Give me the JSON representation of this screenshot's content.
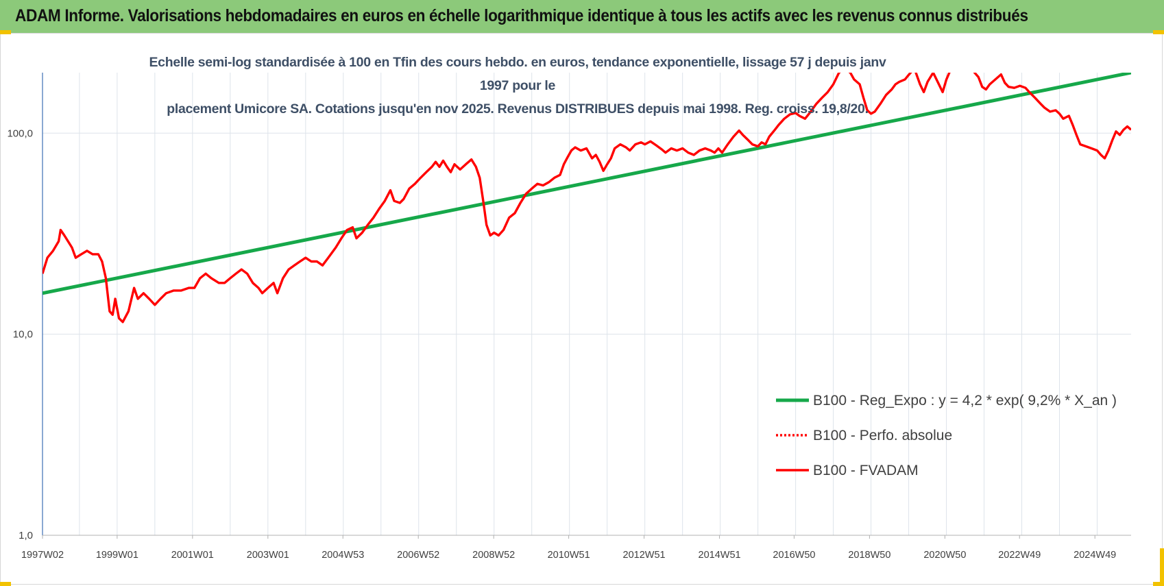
{
  "header": {
    "title": "ADAM Informe. Valorisations hebdomadaires en euros en échelle logarithmique identique à tous les actifs avec les revenus connus distribués"
  },
  "colors": {
    "banner": "#8cc97a",
    "accent_corner": "#f2c200",
    "trend": "#16a84a",
    "fvadam": "#ff0000",
    "perfo": "#ff0000",
    "subtitle": "#3e4f66"
  },
  "chart_data": {
    "type": "line",
    "title_lines": [
      "Echelle semi-log standardisée à 100 en Tfin des cours hebdo. en euros, tendance exponentielle, lissage 57 j depuis janv 1997 pour le",
      "placement Umicore SA. Cotations jusqu'en nov 2025. Revenus DISTRIBUES depuis mai 1998. Reg. croiss. 19,8/20."
    ],
    "y_scale": "log",
    "ylim": [
      1,
      200
    ],
    "y_ticks": [
      {
        "value": 1,
        "label": "1,0"
      },
      {
        "value": 10,
        "label": "10,0"
      },
      {
        "value": 100,
        "label": "100,0"
      }
    ],
    "x_range": [
      1997.02,
      2025.9
    ],
    "x_ticks": [
      {
        "x": 1997.02,
        "label": "1997W02"
      },
      {
        "x": 1999.0,
        "label": "1999W01"
      },
      {
        "x": 2001.0,
        "label": "2001W01"
      },
      {
        "x": 2003.0,
        "label": "2003W01"
      },
      {
        "x": 2004.99,
        "label": "2004W53"
      },
      {
        "x": 2006.99,
        "label": "2006W52"
      },
      {
        "x": 2008.99,
        "label": "2008W52"
      },
      {
        "x": 2010.98,
        "label": "2010W51"
      },
      {
        "x": 2012.98,
        "label": "2012W51"
      },
      {
        "x": 2014.98,
        "label": "2014W51"
      },
      {
        "x": 2016.96,
        "label": "2016W50"
      },
      {
        "x": 2018.96,
        "label": "2018W50"
      },
      {
        "x": 2020.96,
        "label": "2020W50"
      },
      {
        "x": 2022.94,
        "label": "2022W49"
      },
      {
        "x": 2024.94,
        "label": "2024W49"
      }
    ],
    "grid": "vertical",
    "legend_position": "bottom-right",
    "series": [
      {
        "name": "B100 - Reg_Expo : y = 4,2 * exp( 9,2% *  X_an )",
        "color": "#16a84a",
        "style": "solid",
        "points": [
          [
            1997.02,
            16
          ],
          [
            2025.9,
            200
          ]
        ]
      },
      {
        "name": "B100 - Perfo. absolue",
        "color": "#ff0000",
        "style": "dotted",
        "points": []
      },
      {
        "name": "B100 - FVADAM",
        "color": "#ff0000",
        "style": "solid",
        "points": [
          [
            1997.02,
            20
          ],
          [
            1997.15,
            24
          ],
          [
            1997.3,
            26
          ],
          [
            1997.45,
            29
          ],
          [
            1997.5,
            33
          ],
          [
            1997.6,
            31
          ],
          [
            1997.8,
            27
          ],
          [
            1997.9,
            24
          ],
          [
            1998.05,
            25
          ],
          [
            1998.2,
            26
          ],
          [
            1998.35,
            25
          ],
          [
            1998.5,
            25
          ],
          [
            1998.6,
            23
          ],
          [
            1998.7,
            19
          ],
          [
            1998.8,
            13
          ],
          [
            1998.88,
            12.5
          ],
          [
            1998.95,
            15
          ],
          [
            1999.05,
            12
          ],
          [
            1999.15,
            11.5
          ],
          [
            1999.3,
            13
          ],
          [
            1999.45,
            17
          ],
          [
            1999.55,
            15
          ],
          [
            1999.7,
            16
          ],
          [
            1999.85,
            15
          ],
          [
            2000.0,
            14
          ],
          [
            2000.15,
            15
          ],
          [
            2000.3,
            16
          ],
          [
            2000.5,
            16.5
          ],
          [
            2000.7,
            16.5
          ],
          [
            2000.9,
            17
          ],
          [
            2001.05,
            17
          ],
          [
            2001.2,
            19
          ],
          [
            2001.35,
            20
          ],
          [
            2001.5,
            19
          ],
          [
            2001.7,
            18
          ],
          [
            2001.85,
            18
          ],
          [
            2002.0,
            19
          ],
          [
            2002.15,
            20
          ],
          [
            2002.3,
            21
          ],
          [
            2002.45,
            20
          ],
          [
            2002.6,
            18
          ],
          [
            2002.75,
            17
          ],
          [
            2002.85,
            16
          ],
          [
            2003.0,
            17
          ],
          [
            2003.15,
            18
          ],
          [
            2003.25,
            16
          ],
          [
            2003.4,
            19
          ],
          [
            2003.55,
            21
          ],
          [
            2003.7,
            22
          ],
          [
            2003.85,
            23
          ],
          [
            2004.0,
            24
          ],
          [
            2004.15,
            23
          ],
          [
            2004.3,
            23
          ],
          [
            2004.45,
            22
          ],
          [
            2004.6,
            24
          ],
          [
            2004.8,
            27
          ],
          [
            2004.95,
            30
          ],
          [
            2005.1,
            33
          ],
          [
            2005.25,
            34
          ],
          [
            2005.35,
            30
          ],
          [
            2005.5,
            32
          ],
          [
            2005.65,
            35
          ],
          [
            2005.8,
            38
          ],
          [
            2005.95,
            42
          ],
          [
            2006.1,
            46
          ],
          [
            2006.25,
            52
          ],
          [
            2006.35,
            46
          ],
          [
            2006.5,
            45
          ],
          [
            2006.6,
            47
          ],
          [
            2006.75,
            53
          ],
          [
            2006.9,
            56
          ],
          [
            2007.05,
            60
          ],
          [
            2007.2,
            64
          ],
          [
            2007.35,
            68
          ],
          [
            2007.45,
            72
          ],
          [
            2007.55,
            68
          ],
          [
            2007.65,
            73
          ],
          [
            2007.75,
            68
          ],
          [
            2007.85,
            64
          ],
          [
            2007.95,
            70
          ],
          [
            2008.1,
            66
          ],
          [
            2008.25,
            70
          ],
          [
            2008.4,
            74
          ],
          [
            2008.52,
            68
          ],
          [
            2008.62,
            60
          ],
          [
            2008.72,
            45
          ],
          [
            2008.8,
            35
          ],
          [
            2008.9,
            31
          ],
          [
            2009.0,
            32
          ],
          [
            2009.12,
            31
          ],
          [
            2009.25,
            33
          ],
          [
            2009.4,
            38
          ],
          [
            2009.55,
            40
          ],
          [
            2009.7,
            45
          ],
          [
            2009.85,
            50
          ],
          [
            2010.0,
            53
          ],
          [
            2010.15,
            56
          ],
          [
            2010.3,
            55
          ],
          [
            2010.45,
            57
          ],
          [
            2010.6,
            60
          ],
          [
            2010.75,
            62
          ],
          [
            2010.85,
            70
          ],
          [
            2010.95,
            76
          ],
          [
            2011.05,
            82
          ],
          [
            2011.15,
            85
          ],
          [
            2011.3,
            82
          ],
          [
            2011.45,
            84
          ],
          [
            2011.6,
            75
          ],
          [
            2011.7,
            78
          ],
          [
            2011.8,
            72
          ],
          [
            2011.9,
            65
          ],
          [
            2012.0,
            70
          ],
          [
            2012.1,
            75
          ],
          [
            2012.2,
            84
          ],
          [
            2012.35,
            88
          ],
          [
            2012.5,
            85
          ],
          [
            2012.6,
            82
          ],
          [
            2012.75,
            88
          ],
          [
            2012.9,
            90
          ],
          [
            2013.0,
            88
          ],
          [
            2013.15,
            91
          ],
          [
            2013.3,
            87
          ],
          [
            2013.45,
            83
          ],
          [
            2013.55,
            80
          ],
          [
            2013.7,
            84
          ],
          [
            2013.85,
            82
          ],
          [
            2014.0,
            84
          ],
          [
            2014.15,
            80
          ],
          [
            2014.3,
            78
          ],
          [
            2014.45,
            82
          ],
          [
            2014.6,
            84
          ],
          [
            2014.75,
            82
          ],
          [
            2014.85,
            80
          ],
          [
            2014.95,
            84
          ],
          [
            2015.05,
            80
          ],
          [
            2015.2,
            88
          ],
          [
            2015.35,
            96
          ],
          [
            2015.5,
            103
          ],
          [
            2015.6,
            98
          ],
          [
            2015.75,
            92
          ],
          [
            2015.85,
            88
          ],
          [
            2016.0,
            86
          ],
          [
            2016.1,
            90
          ],
          [
            2016.2,
            88
          ],
          [
            2016.3,
            96
          ],
          [
            2016.45,
            104
          ],
          [
            2016.55,
            110
          ],
          [
            2016.7,
            118
          ],
          [
            2016.85,
            124
          ],
          [
            2017.0,
            126
          ],
          [
            2017.1,
            122
          ],
          [
            2017.25,
            118
          ],
          [
            2017.4,
            128
          ],
          [
            2017.55,
            140
          ],
          [
            2017.7,
            150
          ],
          [
            2017.85,
            160
          ],
          [
            2018.0,
            175
          ],
          [
            2018.15,
            200
          ],
          [
            2018.3,
            210
          ],
          [
            2018.45,
            200
          ],
          [
            2018.55,
            185
          ],
          [
            2018.7,
            175
          ],
          [
            2018.8,
            150
          ],
          [
            2018.9,
            130
          ],
          [
            2019.0,
            125
          ],
          [
            2019.1,
            128
          ],
          [
            2019.25,
            140
          ],
          [
            2019.4,
            155
          ],
          [
            2019.55,
            165
          ],
          [
            2019.65,
            175
          ],
          [
            2019.75,
            180
          ],
          [
            2019.9,
            185
          ],
          [
            2020.0,
            195
          ],
          [
            2020.15,
            210
          ],
          [
            2020.3,
            175
          ],
          [
            2020.4,
            160
          ],
          [
            2020.5,
            180
          ],
          [
            2020.65,
            200
          ],
          [
            2020.8,
            175
          ],
          [
            2020.9,
            160
          ],
          [
            2021.0,
            185
          ],
          [
            2021.15,
            215
          ],
          [
            2021.3,
            230
          ],
          [
            2021.5,
            220
          ],
          [
            2021.7,
            205
          ],
          [
            2021.85,
            190
          ],
          [
            2021.95,
            170
          ],
          [
            2022.05,
            165
          ],
          [
            2022.15,
            175
          ],
          [
            2022.3,
            185
          ],
          [
            2022.45,
            196
          ],
          [
            2022.55,
            178
          ],
          [
            2022.65,
            170
          ],
          [
            2022.8,
            168
          ],
          [
            2022.95,
            172
          ],
          [
            2023.1,
            168
          ],
          [
            2023.2,
            160
          ],
          [
            2023.35,
            150
          ],
          [
            2023.5,
            140
          ],
          [
            2023.6,
            134
          ],
          [
            2023.75,
            128
          ],
          [
            2023.9,
            130
          ],
          [
            2024.0,
            125
          ],
          [
            2024.1,
            118
          ],
          [
            2024.25,
            122
          ],
          [
            2024.35,
            110
          ],
          [
            2024.45,
            98
          ],
          [
            2024.55,
            88
          ],
          [
            2024.7,
            86
          ],
          [
            2024.85,
            84
          ],
          [
            2025.0,
            82
          ],
          [
            2025.1,
            78
          ],
          [
            2025.2,
            75
          ],
          [
            2025.3,
            82
          ],
          [
            2025.4,
            92
          ],
          [
            2025.5,
            102
          ],
          [
            2025.6,
            98
          ],
          [
            2025.7,
            104
          ],
          [
            2025.8,
            108
          ],
          [
            2025.9,
            104
          ]
        ]
      }
    ]
  }
}
